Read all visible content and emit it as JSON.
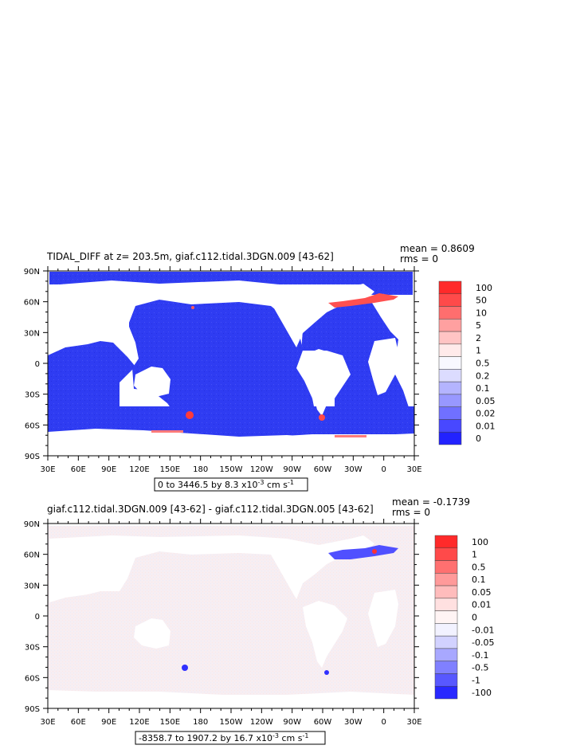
{
  "colors": {
    "ocean_top": "#2f3cf2",
    "land": "#ffffff",
    "ocean_bottom_pos": "#fbe9e9",
    "ocean_bottom_neg": "#ececf8"
  },
  "chart_data": [
    {
      "type": "heatmap",
      "title": "TIDAL_DIFF at z= 203.5m, giaf.c112.tidal.3DGN.009 [43-62]",
      "stats": {
        "mean": "mean = 0.8609",
        "rms": "rms = 0"
      },
      "x_ticks": [
        "30E",
        "60E",
        "90E",
        "120E",
        "150E",
        "180",
        "150W",
        "120W",
        "90W",
        "60W",
        "30W",
        "0",
        "30E"
      ],
      "y_ticks": [
        "90N",
        "60N",
        "30N",
        "0",
        "30S",
        "60S",
        "90S"
      ],
      "xlim": [
        30,
        390
      ],
      "ylim": [
        -90,
        90
      ],
      "range_box": {
        "text": "0 to 3446.5 by 8.3 x10",
        "exp": "-3",
        "unit": " cm s",
        "unit_exp": "-1"
      },
      "legend": {
        "labels": [
          "100",
          "50",
          "10",
          "5",
          "2",
          "1",
          "0.5",
          "0.2",
          "0.1",
          "0.05",
          "0.02",
          "0.01",
          "0"
        ],
        "colors": [
          "#ff2a2a",
          "#ff4a4a",
          "#ff6e6e",
          "#ffa0a0",
          "#ffc4c4",
          "#ffeaea",
          "#f8f8ff",
          "#dcdcff",
          "#b4b4ff",
          "#9898ff",
          "#7070ff",
          "#4848ff",
          "#2222ff"
        ]
      }
    },
    {
      "type": "heatmap",
      "title": "giaf.c112.tidal.3DGN.009 [43-62] - giaf.c112.tidal.3DGN.005 [43-62]",
      "stats": {
        "mean": "mean = -0.1739",
        "rms": "rms = 0"
      },
      "x_ticks": [
        "30E",
        "60E",
        "90E",
        "120E",
        "150E",
        "180",
        "150W",
        "120W",
        "90W",
        "60W",
        "30W",
        "0",
        "30E"
      ],
      "y_ticks": [
        "90N",
        "60N",
        "30N",
        "0",
        "30S",
        "60S",
        "90S"
      ],
      "xlim": [
        30,
        390
      ],
      "ylim": [
        -90,
        90
      ],
      "range_box": {
        "text": "-8358.7 to 1907.2 by 16.7 x10",
        "exp": "-3",
        "unit": " cm s",
        "unit_exp": "-1"
      },
      "legend": {
        "labels": [
          "100",
          "1",
          "0.5",
          "0.1",
          "0.05",
          "0.01",
          "0",
          "-0.01",
          "-0.05",
          "-0.1",
          "-0.5",
          "-1",
          "-100"
        ],
        "colors": [
          "#ff2a2a",
          "#ff4a4a",
          "#ff7070",
          "#ff9a9a",
          "#ffbcbc",
          "#ffe0e0",
          "#fff4f4",
          "#f2f2ff",
          "#d2d2ff",
          "#a8a8ff",
          "#8080ff",
          "#5858ff",
          "#2828ff"
        ]
      }
    }
  ]
}
